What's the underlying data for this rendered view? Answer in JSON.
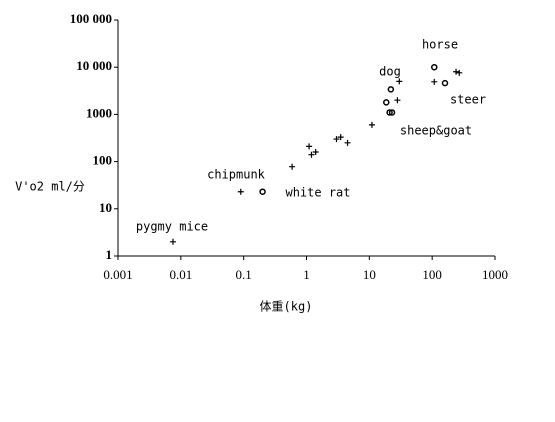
{
  "chart_data": {
    "type": "scatter",
    "xlabel": "体重(kg)",
    "ylabel": "V'o2 ml/分",
    "log_x": true,
    "log_y": true,
    "grid": false,
    "color": "#000000",
    "xlim": [
      0.001,
      1000
    ],
    "xticks": [
      0.001,
      0.01,
      0.1,
      1,
      10,
      100,
      1000
    ],
    "ylim": [
      1,
      100000
    ],
    "yticks": [
      1,
      10,
      100,
      1000,
      {
        "value": 10000,
        "label": "10 000"
      },
      {
        "value": 100000,
        "label": "100 000"
      }
    ],
    "series": [
      {
        "marker": "circle",
        "x": [
          0.2,
          18.6,
          22,
          21,
          23,
          108,
          160
        ],
        "values": [
          23,
          1800,
          3400,
          1100,
          1100,
          10000,
          4600
        ]
      },
      {
        "marker": "plus",
        "x": [
          0.0075,
          0.09,
          0.59,
          1.1,
          1.2,
          1.4,
          3,
          3.5,
          4.5,
          11,
          28,
          30,
          108,
          240,
          270
        ],
        "values": [
          2,
          23,
          78,
          210,
          140,
          160,
          300,
          330,
          250,
          600,
          2000,
          5000,
          4900,
          8000,
          7600
        ]
      }
    ],
    "annotations": [
      "horse",
      "dog",
      "steer",
      "sheep&goat",
      "chipmunk",
      "white rat",
      "pygmy mice"
    ]
  }
}
